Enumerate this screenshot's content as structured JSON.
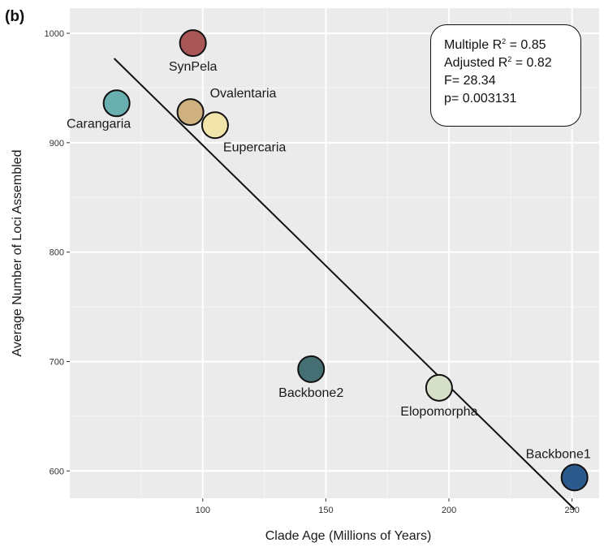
{
  "panel_tag": "(b)",
  "stats": {
    "line1_pre": "Multiple R",
    "line1_sup": "2",
    "line1_post": " = 0.85",
    "line2_pre": "Adjusted R",
    "line2_sup": "2",
    "line2_post": " = 0.82",
    "line3": "F= 28.34",
    "line4": "p= 0.003131"
  },
  "chart_data": {
    "type": "scatter",
    "xlabel": "Clade Age (Millions of Years)",
    "ylabel": "Average Number of Loci Assembled",
    "xlim": [
      46,
      261
    ],
    "ylim": [
      575,
      1023
    ],
    "xticks": [
      100,
      150,
      200,
      250
    ],
    "yticks": [
      600,
      700,
      800,
      900,
      1000
    ],
    "grid": true,
    "points": [
      {
        "label": "SynPela",
        "x": 96,
        "y": 991,
        "color": "#A85656",
        "label_pos": "below"
      },
      {
        "label": "Carangaria",
        "x": 65,
        "y": 936,
        "color": "#6AAFB0",
        "label_pos": "below-left"
      },
      {
        "label": "Ovalentaria",
        "x": 95,
        "y": 928,
        "color": "#CFB07F",
        "label_pos": "above-right"
      },
      {
        "label": "Eupercaria",
        "x": 105,
        "y": 916,
        "color": "#F1E4AA",
        "label_pos": "below-right"
      },
      {
        "label": "Backbone2",
        "x": 144,
        "y": 693,
        "color": "#456F72",
        "label_pos": "below"
      },
      {
        "label": "Elopomorpha",
        "x": 196,
        "y": 676,
        "color": "#D6DFC8",
        "label_pos": "below"
      },
      {
        "label": "Backbone1",
        "x": 251,
        "y": 594,
        "color": "#2C5A8C",
        "label_pos": "above-left"
      }
    ],
    "fit_line": {
      "x": [
        64,
        251
      ],
      "y": [
        977,
        565
      ]
    }
  }
}
